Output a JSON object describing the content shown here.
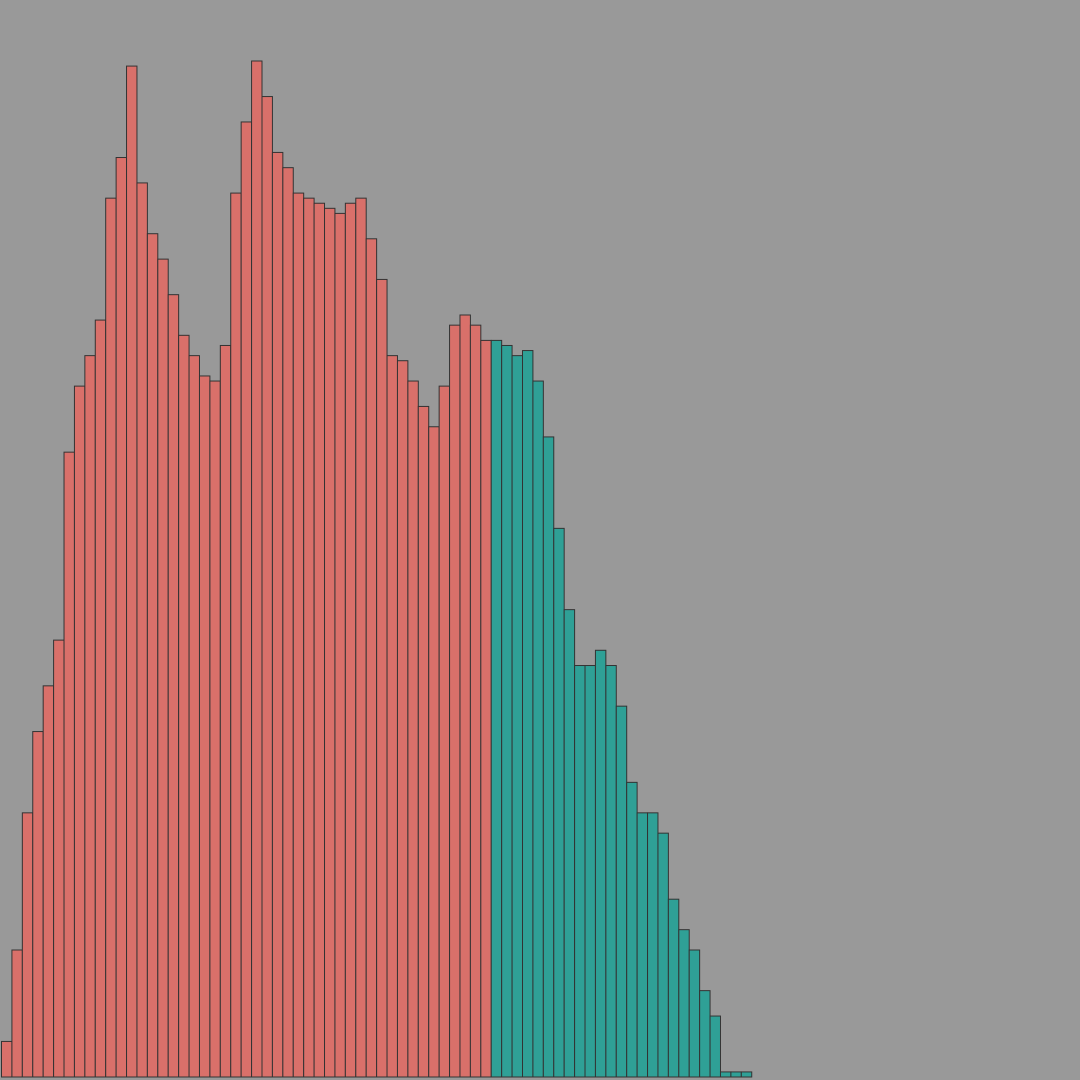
{
  "chart_data": {
    "type": "bar",
    "subtype": "histogram",
    "background_color": "#999999",
    "bar_edge_color": "#333333",
    "grid": false,
    "axes_visible": false,
    "legend": "none",
    "ylim": [
      0,
      200
    ],
    "series": [
      {
        "color": "#D9706A",
        "bin_start": 0,
        "values": [
          7,
          25,
          52,
          68,
          77,
          86,
          123,
          136,
          142,
          149,
          173,
          181,
          199,
          176,
          166,
          161,
          154,
          146,
          142,
          138,
          137,
          144,
          174,
          188,
          200,
          193,
          182,
          179,
          174,
          173,
          172,
          171,
          170,
          172,
          173,
          165,
          157,
          142,
          141,
          137,
          132,
          128,
          136,
          148,
          150,
          148,
          145
        ]
      },
      {
        "color": "#2FA096",
        "bin_start": 47,
        "values": [
          145,
          144,
          142,
          143,
          137,
          126,
          108,
          92,
          81,
          81,
          84,
          81,
          73,
          58,
          52,
          52,
          48,
          35,
          29,
          25,
          17,
          12,
          1,
          1,
          1
        ]
      }
    ]
  }
}
